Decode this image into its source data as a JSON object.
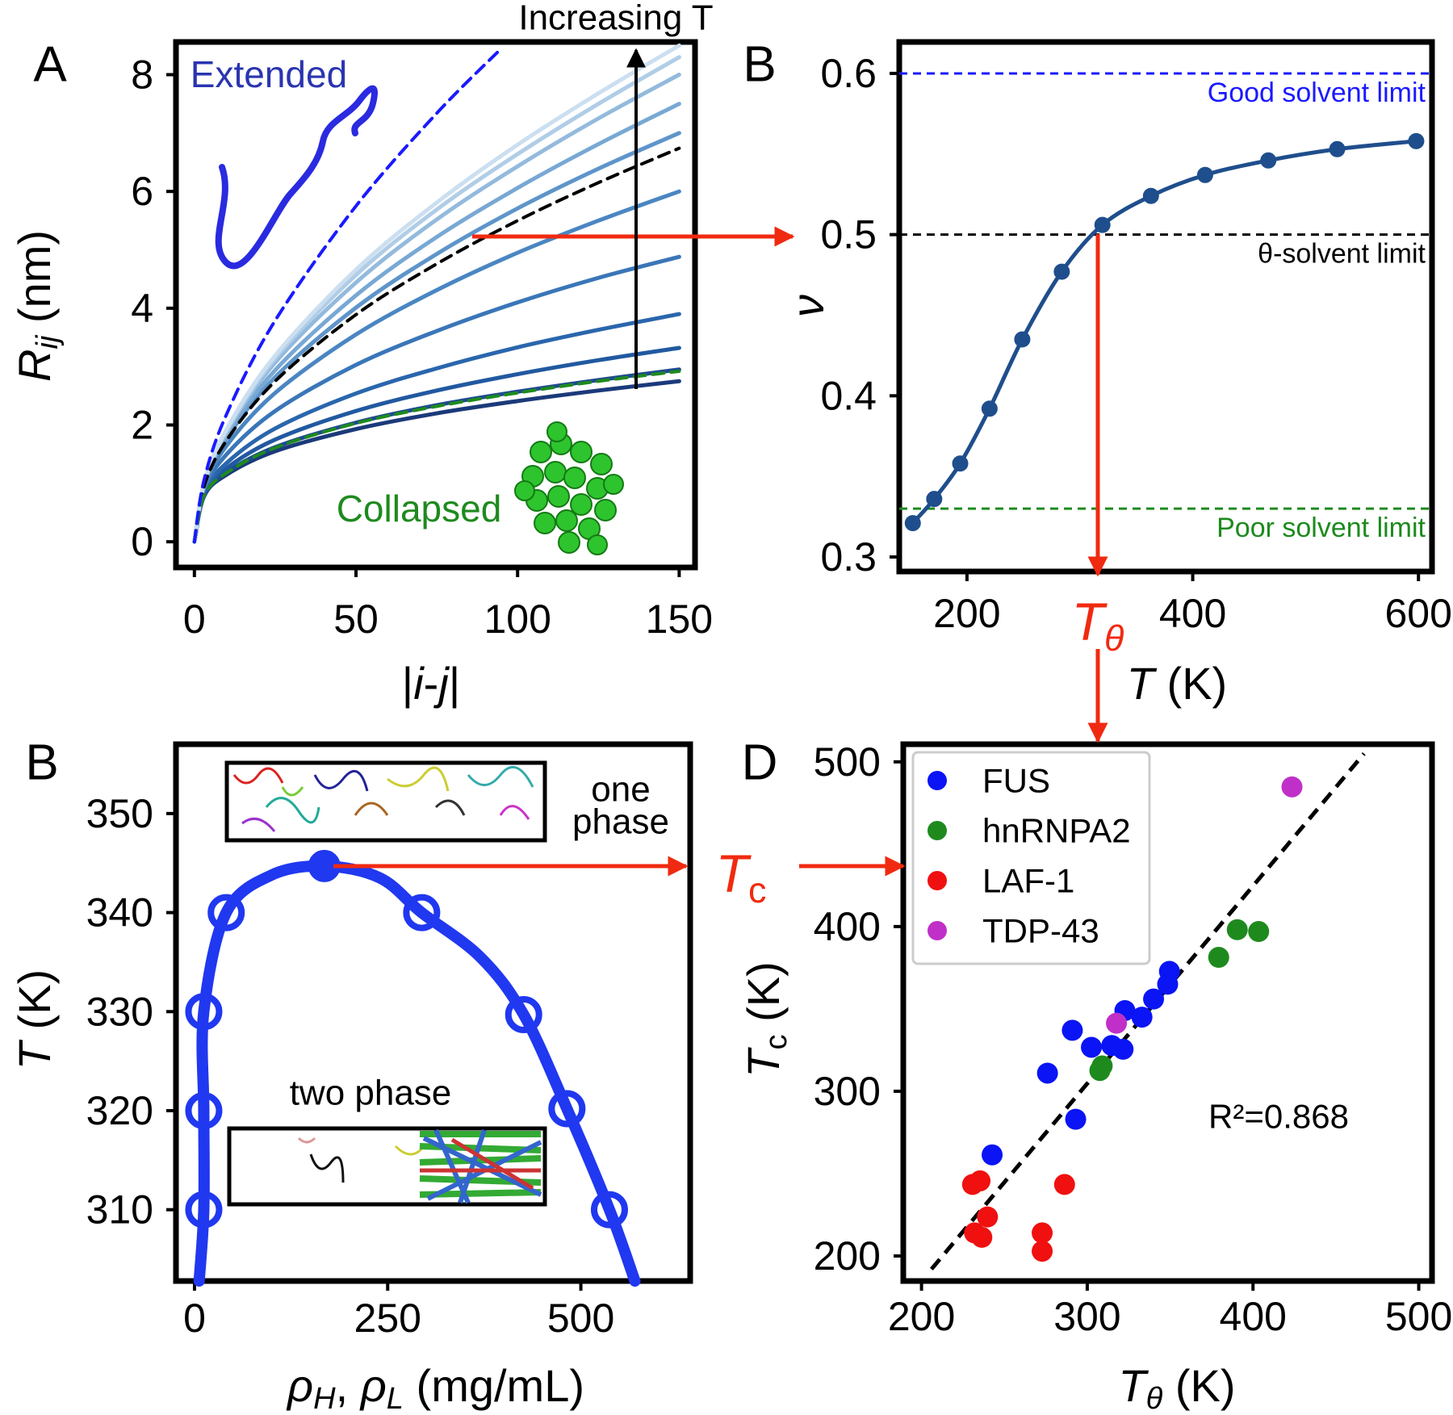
{
  "chart_data": [
    {
      "type": "line",
      "panel_label": "A",
      "xlabel": [
        {
          "text": "|"
        },
        {
          "text": "i",
          "style": "italic"
        },
        {
          "text": "-"
        },
        {
          "text": "j",
          "style": "italic"
        },
        {
          "text": "|"
        }
      ],
      "ylabel": [
        {
          "text": "R",
          "style": "italic"
        },
        {
          "text": "ij",
          "style": "italic-sub"
        },
        {
          "text": " (nm)"
        }
      ],
      "xlim": [
        -5.7,
        154.9
      ],
      "ylim": [
        -0.44,
        8.56
      ],
      "xticks": [
        0,
        50,
        100,
        150
      ],
      "yticks": [
        0,
        2,
        4,
        6,
        8
      ],
      "x": [
        0,
        3,
        10,
        25,
        50,
        75,
        100,
        125,
        150
      ],
      "series": [
        {
          "color": "#1b3a7a",
          "values": [
            0,
            0.78,
            1.15,
            1.55,
            1.93,
            2.2,
            2.41,
            2.59,
            2.75
          ]
        },
        {
          "color": "#1f4b8f",
          "values": [
            0,
            0.79,
            1.19,
            1.62,
            2.04,
            2.34,
            2.57,
            2.77,
            2.95
          ]
        },
        {
          "color": "#2159a0",
          "values": [
            0,
            0.82,
            1.26,
            1.75,
            2.24,
            2.59,
            2.87,
            3.11,
            3.32
          ]
        },
        {
          "color": "#2a66ad",
          "values": [
            0,
            0.84,
            1.35,
            1.94,
            2.54,
            2.97,
            3.33,
            3.63,
            3.9
          ]
        },
        {
          "color": "#3a76b8",
          "values": [
            0,
            0.89,
            1.5,
            2.24,
            3.03,
            3.61,
            4.1,
            4.52,
            4.88
          ]
        },
        {
          "color": "#4a86c2",
          "values": [
            0,
            0.93,
            1.65,
            2.55,
            3.55,
            4.31,
            4.95,
            5.5,
            6.0
          ]
        },
        {
          "color": "#5e95ca",
          "values": [
            0,
            0.96,
            1.77,
            2.82,
            4.01,
            4.93,
            5.71,
            6.39,
            7.0
          ]
        },
        {
          "color": "#78a8d4",
          "values": [
            0,
            0.98,
            1.82,
            2.94,
            4.22,
            5.22,
            6.06,
            6.81,
            7.5
          ]
        },
        {
          "color": "#93badd",
          "values": [
            0,
            0.99,
            1.88,
            3.07,
            4.44,
            5.52,
            6.43,
            7.25,
            8.0
          ]
        },
        {
          "color": "#b0cde7",
          "values": [
            0,
            1.0,
            1.91,
            3.14,
            4.57,
            5.69,
            6.64,
            7.5,
            8.3
          ]
        },
        {
          "color": "#cbdff0",
          "values": [
            0,
            1.0,
            1.93,
            3.19,
            4.66,
            5.81,
            6.8,
            7.68,
            8.5
          ]
        },
        {
          "color": "#000000",
          "dash": true,
          "values": [
            0,
            0.95,
            1.74,
            2.75,
            3.89,
            4.76,
            5.5,
            6.15,
            6.74
          ]
        },
        {
          "color": "#1e8a1e",
          "dash": true,
          "values": [
            0,
            0.79,
            1.18,
            1.61,
            2.03,
            2.32,
            2.55,
            2.75,
            2.92
          ]
        },
        {
          "color": "#1a1aff",
          "dash": true,
          "x": [
            0,
            3,
            10,
            25,
            50,
            75,
            95
          ],
          "values": [
            0,
            1.06,
            2.19,
            3.79,
            5.75,
            7.34,
            8.45
          ]
        }
      ],
      "annotations": [
        {
          "text": "Extended",
          "color": "#2a35b0"
        },
        {
          "text": "Collapsed",
          "color": "#1e8a1e"
        },
        {
          "text": "Increasing T",
          "color": "#000000"
        }
      ]
    },
    {
      "type": "line",
      "panel_label": "B",
      "xlabel": [
        {
          "text": "T",
          "style": "italic"
        },
        {
          "text": " (K)"
        }
      ],
      "ylabel": [
        {
          "text": "ν",
          "style": "italic"
        }
      ],
      "xlim": [
        140,
        612
      ],
      "ylim": [
        0.291,
        0.6195
      ],
      "xticks": [
        200,
        400,
        600
      ],
      "yticks": [
        0.3,
        0.4,
        0.5,
        0.6
      ],
      "x": [
        152,
        171,
        194,
        220,
        249,
        284,
        320,
        363,
        411,
        467,
        528,
        598
      ],
      "series": [
        {
          "color": "#1f4e8c",
          "markers": true,
          "values": [
            0.321,
            0.336,
            0.358,
            0.392,
            0.435,
            0.477,
            0.506,
            0.524,
            0.537,
            0.546,
            0.553,
            0.558
          ]
        }
      ],
      "hlines": [
        {
          "value": 0.6,
          "label": "Good solvent limit",
          "color": "#1a1aff"
        },
        {
          "value": 0.5,
          "label": "θ-solvent limit",
          "color": "#000000"
        },
        {
          "value": 0.33,
          "label": "Poor solvent limit",
          "color": "#1e8a1e"
        }
      ],
      "annotations": [
        {
          "text": [
            {
              "text": "T",
              "style": "italic"
            },
            {
              "text": "θ",
              "style": "italic-sub"
            }
          ],
          "color": "#f02a10"
        }
      ]
    },
    {
      "type": "line",
      "panel_label": "B",
      "xlabel": [
        {
          "text": "ρ",
          "style": "italic"
        },
        {
          "text": "H",
          "style": "italic-sub"
        },
        {
          "text": ", "
        },
        {
          "text": "ρ",
          "style": "italic"
        },
        {
          "text": "L",
          "style": "italic-sub"
        },
        {
          "text": " (mg/mL)"
        }
      ],
      "ylabel": [
        {
          "text": "T",
          "style": "italic"
        },
        {
          "text": " (K)"
        }
      ],
      "xlim": [
        -24,
        641.5
      ],
      "ylim": [
        302.8,
        357
      ],
      "xticks": [
        0,
        250,
        500
      ],
      "yticks": [
        310,
        320,
        330,
        340,
        350
      ],
      "series": [
        {
          "color": "#2038f0",
          "style": "line",
          "x": [
            6,
            12,
            12,
            12,
            41,
            100,
            168,
            240,
            294,
            370,
            426,
            482,
            537,
            570
          ],
          "values": [
            302.8,
            310,
            320,
            330,
            340,
            343.8,
            344.7,
            343.5,
            340,
            335.5,
            329.7,
            320.2,
            310,
            302.8
          ]
        },
        {
          "color": "#2038f0",
          "style": "open",
          "x": [
            12,
            12,
            12,
            41,
            294,
            426,
            482,
            537
          ],
          "values": [
            310,
            320,
            330,
            340,
            340,
            329.7,
            320.2,
            310
          ]
        },
        {
          "color": "#2038f0",
          "style": "filled",
          "x": [
            168
          ],
          "values": [
            344.7
          ]
        }
      ],
      "annotations": [
        {
          "text": "one",
          "color": "#000000"
        },
        {
          "text": "phase",
          "color": "#000000"
        },
        {
          "text": "two phase",
          "color": "#000000"
        },
        {
          "text": [
            {
              "text": "T",
              "style": "italic"
            },
            {
              "text": "c",
              "style": "sub"
            }
          ],
          "color": "#f02a10"
        }
      ]
    },
    {
      "type": "scatter",
      "panel_label": "D",
      "xlabel": [
        {
          "text": "T",
          "style": "italic"
        },
        {
          "text": "θ",
          "style": "italic-sub"
        },
        {
          "text": " (K)"
        }
      ],
      "ylabel": [
        {
          "text": "T",
          "style": "italic"
        },
        {
          "text": "c",
          "style": "sub"
        },
        {
          "text": " (K)"
        }
      ],
      "xlim": [
        189,
        508
      ],
      "ylim": [
        184.8,
        510.7
      ],
      "xticks": [
        200,
        300,
        400,
        500
      ],
      "yticks": [
        200,
        300,
        400,
        500
      ],
      "legend": "upper left",
      "series": [
        {
          "name": "FUS",
          "color": "#0a14f5",
          "x": [
            242.6,
            276,
            293,
            291,
            302.5,
            314.8,
            321.6,
            322.7,
            333,
            340,
            348.5,
            349.6
          ],
          "values": [
            261.4,
            311,
            283,
            337,
            326.7,
            327.8,
            325.5,
            349,
            345,
            356,
            365,
            372.8
          ]
        },
        {
          "name": "hnRNPA2",
          "color": "#1e8a1e",
          "x": [
            307.6,
            309,
            379.3,
            390.5,
            403.4
          ],
          "values": [
            312.6,
            315.4,
            381.3,
            398.1,
            397
          ]
        },
        {
          "name": "LAF-1",
          "color": "#f01010",
          "x": [
            230.8,
            235.3,
            232,
            236.4,
            239.8,
            272.8,
            272.8,
            286.3
          ],
          "values": [
            243.4,
            245.6,
            214,
            211.3,
            223.7,
            214,
            202.9,
            243.4
          ]
        },
        {
          "name": "TDP-43",
          "color": "#c030c8",
          "x": [
            317.6,
            423.5
          ],
          "values": [
            341.3,
            484.8
          ]
        }
      ],
      "fit": {
        "x": [
          206,
          467
        ],
        "y": [
          192,
          505
        ],
        "color": "#000000"
      },
      "annotations": [
        {
          "text": "R²=0.868",
          "color": "#000000"
        }
      ]
    }
  ]
}
